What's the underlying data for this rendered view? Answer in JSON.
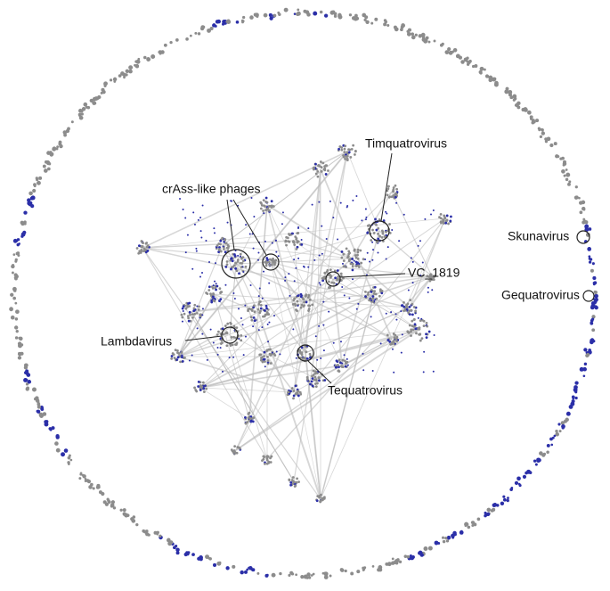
{
  "nodes": [
    {
      "label": "Timquatrovirus"
    },
    {
      "label": "crAss-like phages"
    },
    {
      "label": "Skunavirus"
    },
    {
      "label": "VC_1819"
    },
    {
      "label": "Gequatrovirus"
    },
    {
      "label": "Lambdavirus"
    },
    {
      "label": "Tequatrovirus"
    }
  ]
}
